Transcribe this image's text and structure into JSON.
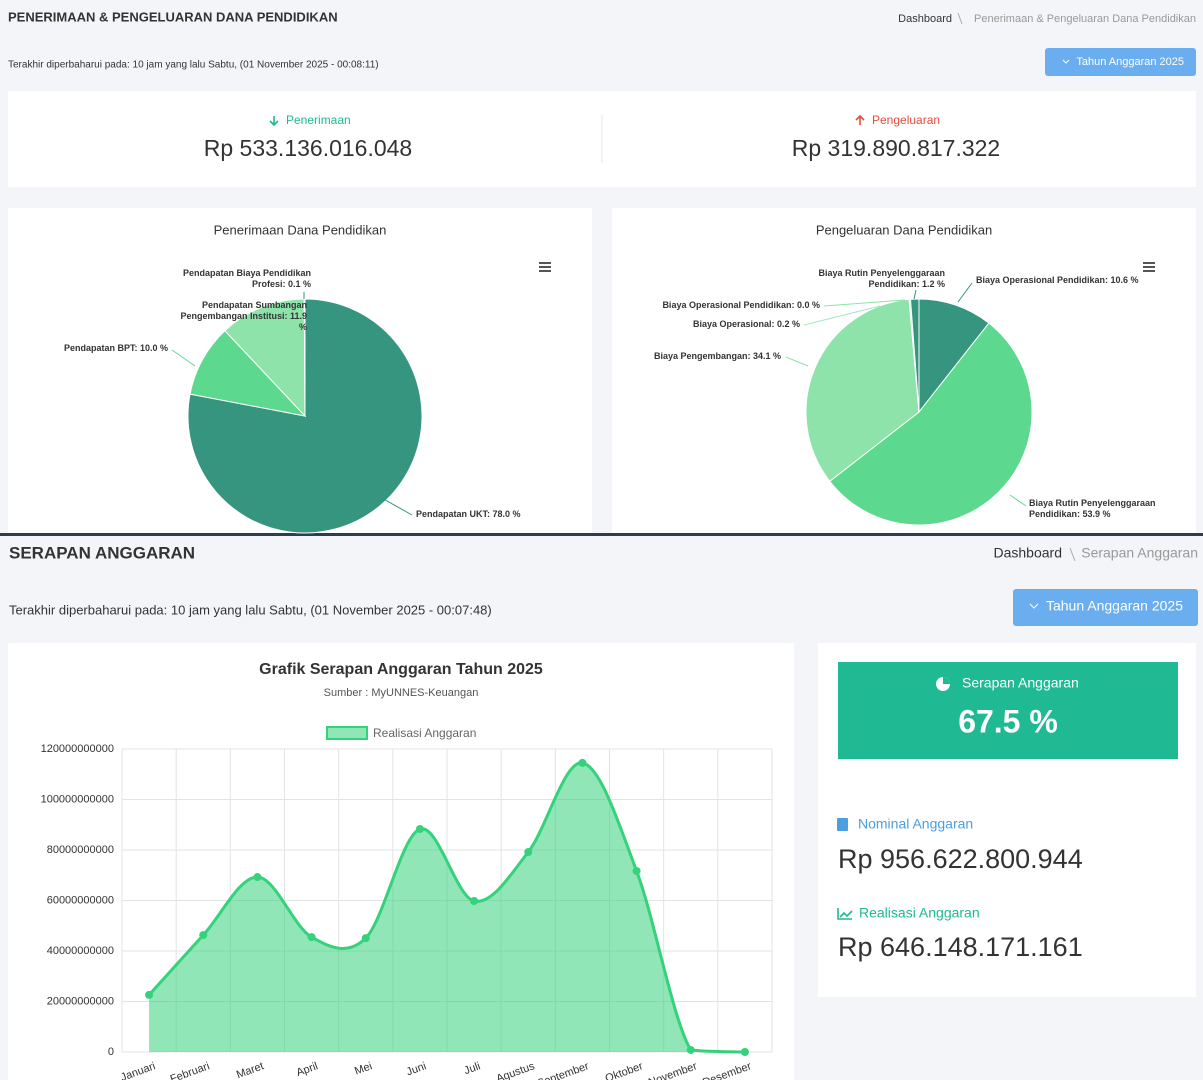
{
  "header1": {
    "title": "PENERIMAAN & PENGELUARAN DANA PENDIDIKAN",
    "breadcrumb": [
      "Dashboard",
      "Penerimaan & Pengeluaran Dana Pendidikan"
    ],
    "updated": "Terakhir diperbaharui pada: 10 jam yang lalu Sabtu, (01 November 2025 - 00:08:11)",
    "button": "Tahun Anggaran 2025"
  },
  "summary": {
    "income_label": "Penerimaan",
    "income": "Rp 533.136.016.048",
    "expense_label": "Pengeluaran",
    "expense": "Rp 319.890.817.322"
  },
  "header2": {
    "title": "SERAPAN ANGGARAN",
    "breadcrumb": [
      "Dashboard",
      "Serapan Anggaran"
    ],
    "updated": "Terakhir diperbaharui pada: 10 jam yang lalu Sabtu, (01 November 2025 - 00:07:48)",
    "button": "Tahun Anggaran 2025"
  },
  "absorption": {
    "title": "Serapan Anggaran",
    "percent": "67.5 %",
    "nominal_label": "Nominal Anggaran",
    "nominal": "Rp 956.622.800.944",
    "realization_label": "Realisasi Anggaran",
    "realization": "Rp 646.148.171.161"
  },
  "chart_data": [
    {
      "type": "pie",
      "title": "Penerimaan Dana Pendidikan",
      "values": [
        78.0,
        10.0,
        11.9,
        0.1
      ],
      "value_labels": [
        "Pendapatan UKT: 78.0 %",
        "Pendapatan BPT: 10.0 %",
        "Pendapatan Sumbangan\nPengembangan Institusi: 11.9\n%",
        "Pendapatan Biaya Pendidikan\nProfesi: 0.1 %"
      ],
      "colors": [
        "#36957f",
        "#5dd98f",
        "#8de3aa",
        "#36957f"
      ]
    },
    {
      "type": "pie",
      "title": "Pengeluaran Dana Pendidikan",
      "values": [
        10.6,
        53.9,
        34.1,
        0.2,
        0.0,
        1.2
      ],
      "value_labels": [
        "Biaya Operasional Pendidikan: 10.6 %",
        "Biaya Rutin Penyelenggaraan\nPendidikan: 53.9 %",
        "Biaya Pengembangan: 34.1 %",
        "Biaya Operasional: 0.2 %",
        "Biaya Operasional Pendidikan: 0.0 %",
        "Biaya Rutin Penyelenggaraan\nPendidikan: 1.2 %"
      ],
      "colors": [
        "#36957f",
        "#5dd98f",
        "#8de3aa",
        "#a3e9be",
        "#8de3aa",
        "#36957f"
      ]
    },
    {
      "type": "line",
      "title": "Grafik Serapan Anggaran Tahun 2025",
      "subtitle": "Sumber : MyUNNES-Keuangan",
      "categories": [
        "Januari",
        "Februari",
        "Maret",
        "April",
        "Mei",
        "Juni",
        "Juli",
        "Agustus",
        "September",
        "Oktober",
        "November",
        "Desember"
      ],
      "series": [
        {
          "name": "Realisasi Anggaran",
          "color": "#34d27b",
          "values": [
            22600000000,
            46300000000,
            69300000000,
            45500000000,
            45100000000,
            88300000000,
            59800000000,
            79200000000,
            114500000000,
            71700000000,
            800000000,
            0
          ]
        }
      ],
      "ylim": [
        0,
        120000000000
      ],
      "yticks": [
        0,
        20000000000,
        40000000000,
        60000000000,
        80000000000,
        100000000000,
        120000000000
      ],
      "grid": true,
      "area": true
    }
  ]
}
